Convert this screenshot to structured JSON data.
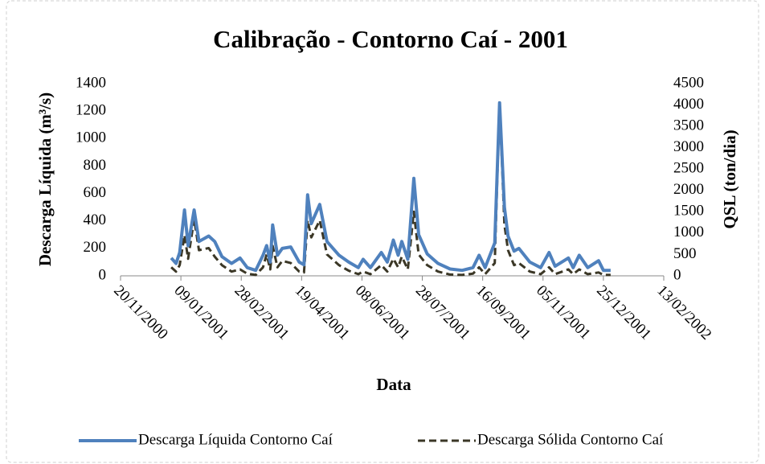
{
  "chart_data": {
    "type": "line",
    "title": "Calibração - Contorno Caí - 2001",
    "x_label": "Data",
    "y_label": "Descarga Líquida (m³/s)",
    "y2_label": "QSL (ton/dia)",
    "x": [
      "2001-01-01",
      "2001-01-05",
      "2001-01-08",
      "2001-01-12",
      "2001-01-15",
      "2001-01-20",
      "2001-01-24",
      "2001-02-01",
      "2001-02-06",
      "2001-02-12",
      "2001-02-20",
      "2001-02-27",
      "2001-03-05",
      "2001-03-12",
      "2001-03-18",
      "2001-03-21",
      "2001-03-24",
      "2001-03-26",
      "2001-03-30",
      "2001-04-03",
      "2001-04-10",
      "2001-04-17",
      "2001-04-21",
      "2001-04-24",
      "2001-04-27",
      "2001-05-04",
      "2001-05-10",
      "2001-05-20",
      "2001-05-28",
      "2001-06-05",
      "2001-06-09",
      "2001-06-15",
      "2001-06-24",
      "2001-06-29",
      "2001-07-04",
      "2001-07-08",
      "2001-07-11",
      "2001-07-16",
      "2001-07-21",
      "2001-07-25",
      "2001-08-01",
      "2001-08-10",
      "2001-08-20",
      "2001-08-30",
      "2001-09-08",
      "2001-09-13",
      "2001-09-18",
      "2001-09-26",
      "2001-09-30",
      "2001-10-04",
      "2001-10-07",
      "2001-10-12",
      "2001-10-16",
      "2001-10-25",
      "2001-11-03",
      "2001-11-10",
      "2001-11-15",
      "2001-11-26",
      "2001-11-30",
      "2001-12-05",
      "2001-12-12",
      "2001-12-21",
      "2001-12-25",
      "2001-12-31"
    ],
    "series": [
      {
        "name": "Descarga Líquida Contorno Caí",
        "color": "#4f81bd",
        "axis": "y",
        "values": [
          130,
          90,
          170,
          480,
          220,
          480,
          250,
          290,
          250,
          140,
          90,
          130,
          60,
          40,
          150,
          220,
          100,
          370,
          150,
          200,
          210,
          100,
          80,
          590,
          380,
          520,
          250,
          150,
          100,
          60,
          120,
          60,
          170,
          100,
          260,
          150,
          250,
          120,
          710,
          300,
          160,
          90,
          50,
          40,
          60,
          150,
          60,
          240,
          1260,
          500,
          290,
          180,
          200,
          100,
          60,
          170,
          70,
          130,
          60,
          150,
          60,
          110,
          40,
          40
        ]
      },
      {
        "name": "Descarga Sólida Contorno Caí",
        "color": "#3b3726",
        "axis": "y2",
        "dash": true,
        "values": [
          200,
          100,
          250,
          950,
          400,
          1330,
          600,
          650,
          450,
          250,
          100,
          150,
          50,
          20,
          200,
          500,
          150,
          700,
          200,
          350,
          300,
          100,
          80,
          1300,
          900,
          1300,
          500,
          250,
          120,
          40,
          100,
          40,
          250,
          100,
          400,
          200,
          450,
          150,
          1500,
          500,
          250,
          100,
          30,
          20,
          50,
          200,
          40,
          300,
          4100,
          1200,
          600,
          250,
          300,
          100,
          40,
          200,
          40,
          150,
          40,
          150,
          40,
          80,
          20,
          20
        ]
      }
    ],
    "xlim": [
      "2000-11-20",
      "2002-02-13"
    ],
    "xticks": [
      {
        "value": "2000-11-20",
        "label": "20/11/2000"
      },
      {
        "value": "2001-01-09",
        "label": "09/01/2001"
      },
      {
        "value": "2001-02-28",
        "label": "28/02/2001"
      },
      {
        "value": "2001-04-19",
        "label": "19/04/2001"
      },
      {
        "value": "2001-06-08",
        "label": "08/06/2001"
      },
      {
        "value": "2001-07-28",
        "label": "28/07/2001"
      },
      {
        "value": "2001-09-16",
        "label": "16/09/2001"
      },
      {
        "value": "2001-11-05",
        "label": "05/11/2001"
      },
      {
        "value": "2001-12-25",
        "label": "25/12/2001"
      },
      {
        "value": "2002-02-13",
        "label": "13/02/2002"
      }
    ],
    "ylim": [
      0,
      1400
    ],
    "yticks": [
      0,
      200,
      400,
      600,
      800,
      1000,
      1200,
      1400
    ],
    "y2lim": [
      0,
      4500
    ],
    "y2ticks": [
      0,
      500,
      1000,
      1500,
      2000,
      2500,
      3000,
      3500,
      4000,
      4500
    ],
    "grid": false,
    "legend": "bottom"
  }
}
